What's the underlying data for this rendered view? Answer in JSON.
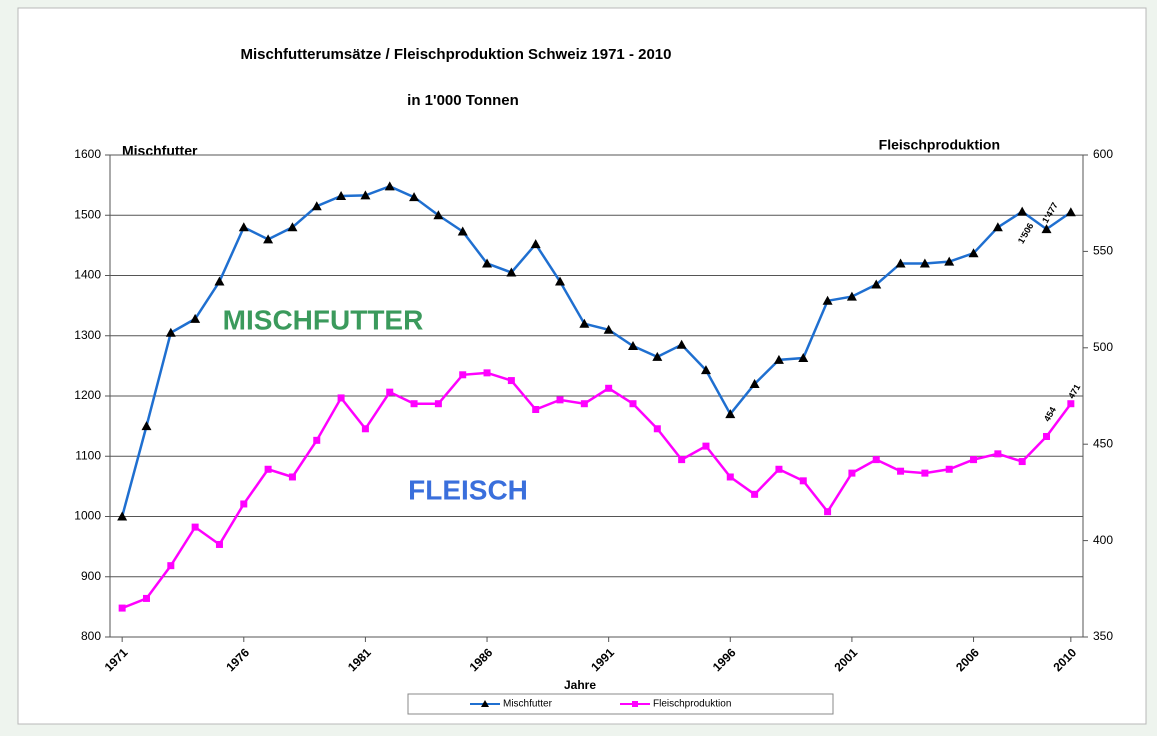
{
  "chart_data": {
    "type": "line",
    "title": "Mischfutterumsätze / Fleischproduktion Schweiz 1971 - 2010",
    "subtitle": "in 1'000 Tonnen",
    "y_label": "Mischfutter",
    "y2_label": "Fleischproduktion",
    "x_label": "Jahre",
    "annotations": [
      {
        "text": "MISCHFUTTER",
        "color": "#3b9a5c"
      },
      {
        "text": "FLEISCH",
        "color": "#3a6fdc"
      }
    ],
    "x": [
      1971,
      1972,
      1973,
      1974,
      1975,
      1976,
      1977,
      1978,
      1979,
      1980,
      1981,
      1982,
      1983,
      1984,
      1985,
      1986,
      1987,
      1988,
      1989,
      1990,
      1991,
      1992,
      1993,
      1994,
      1995,
      1996,
      1997,
      1998,
      1999,
      2000,
      2001,
      2002,
      2003,
      2004,
      2005,
      2006,
      2007,
      2008,
      2009,
      2010
    ],
    "xlim": [
      1970.5,
      2010.5
    ],
    "xticks": [
      1971,
      1976,
      1981,
      1986,
      1991,
      1996,
      2001,
      2006,
      2010
    ],
    "ylim": [
      800,
      1600
    ],
    "yticks": [
      800,
      900,
      1000,
      1100,
      1200,
      1300,
      1400,
      1500,
      1600
    ],
    "y2lim": [
      350,
      600
    ],
    "y2ticks": [
      350,
      400,
      450,
      500,
      550,
      600
    ],
    "grid": true,
    "legend": "bottom",
    "series": [
      {
        "name": "Mischfutter",
        "color": "#1f6fd0",
        "marker": "triangle",
        "marker_color": "#000000",
        "values": [
          1000,
          1150,
          1305,
          1328,
          1390,
          1480,
          1460,
          1480,
          1515,
          1532,
          1533,
          1548,
          1530,
          1500,
          1473,
          1420,
          1405,
          1452,
          1390,
          1320,
          1310,
          1283,
          1265,
          1285,
          1243,
          1170,
          1220,
          1260,
          1263,
          1358,
          1365,
          1385,
          1420,
          1420,
          1423,
          1437,
          1480,
          1506,
          1477,
          1505
        ],
        "value_labels": [
          null,
          null,
          null,
          null,
          null,
          null,
          null,
          null,
          null,
          null,
          null,
          null,
          null,
          null,
          null,
          null,
          null,
          null,
          null,
          null,
          null,
          null,
          null,
          null,
          null,
          null,
          null,
          null,
          null,
          null,
          null,
          null,
          null,
          null,
          null,
          null,
          null,
          "1'506",
          "1'477",
          null
        ]
      },
      {
        "name": "Fleischproduktion",
        "color": "#ff00ff",
        "marker": "square",
        "marker_color": "#ff00ff",
        "axis": "y2",
        "values": [
          365,
          370,
          387,
          407,
          398,
          419,
          437,
          433,
          452,
          474,
          458,
          477,
          471,
          471,
          486,
          487,
          483,
          468,
          473,
          471,
          479,
          471,
          458,
          442,
          449,
          433,
          424,
          437,
          431,
          415,
          435,
          442,
          436,
          435,
          437,
          442,
          445,
          441,
          454,
          471
        ],
        "value_labels": [
          null,
          null,
          null,
          null,
          null,
          null,
          null,
          null,
          null,
          null,
          null,
          null,
          null,
          null,
          null,
          null,
          null,
          null,
          null,
          null,
          null,
          null,
          null,
          null,
          null,
          null,
          null,
          null,
          null,
          null,
          null,
          null,
          null,
          null,
          null,
          null,
          null,
          null,
          "454",
          "471"
        ]
      }
    ]
  }
}
